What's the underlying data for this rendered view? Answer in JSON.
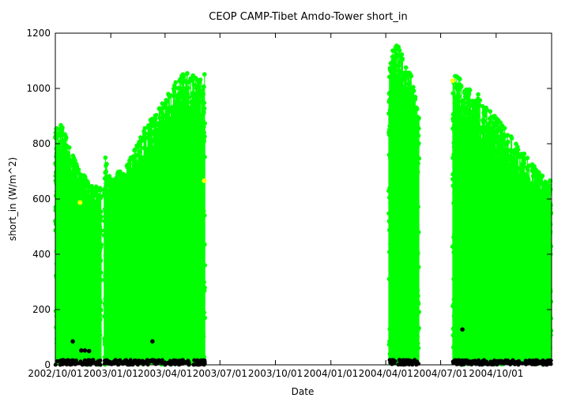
{
  "chart_data": {
    "type": "scatter",
    "title": "CEOP CAMP-Tibet Amdo-Tower  short_in",
    "xlabel": "Date",
    "ylabel": "short_in (W/m^2)",
    "xlim": [
      "2002-10-01",
      "2005-01-01"
    ],
    "ylim": [
      0,
      1200
    ],
    "x_ticks": [
      "2002/10/01",
      "2003/01/01",
      "2003/04/01",
      "2003/07/01",
      "2003/10/01",
      "2004/01/01",
      "2004/04/01",
      "2004/07/01",
      "2004/10/01"
    ],
    "y_ticks": [
      0,
      200,
      400,
      600,
      800,
      1000,
      1200
    ],
    "colors": {
      "good": "#00ff00",
      "flagged": "#ffff00",
      "bad": "#000000"
    },
    "observation_periods": [
      {
        "start": "2002-10-01",
        "end": "2002-12-16",
        "max_values": [
          900,
          880,
          870,
          850,
          820,
          790,
          760,
          740,
          720,
          700,
          690,
          680,
          660,
          650,
          650,
          640,
          640
        ]
      },
      {
        "start": "2002-12-21",
        "end": "2003-06-06",
        "max_values": [
          800,
          700,
          680,
          690,
          700,
          710,
          720,
          750,
          780,
          800,
          830,
          860,
          880,
          900,
          920,
          940,
          960,
          980,
          1000,
          1020,
          1040,
          1050,
          1060,
          1055,
          1050,
          1045,
          1040,
          1060
        ]
      },
      {
        "start": "2004-04-06",
        "end": "2004-05-26",
        "max_values": [
          1050,
          1120,
          1150,
          1160,
          1160,
          1140,
          1120,
          1100,
          1080,
          1060,
          1040,
          1000,
          950,
          900
        ]
      },
      {
        "start": "2004-07-21",
        "end": "2004-12-31",
        "max_values": [
          1075,
          1050,
          1030,
          1020,
          1000,
          990,
          980,
          960,
          940,
          920,
          900,
          880,
          860,
          840,
          820,
          800,
          780,
          760,
          740,
          720,
          700,
          690,
          680,
          680
        ]
      }
    ],
    "flagged_points": [
      {
        "x": "2002-11-11",
        "y": 587
      },
      {
        "x": "2003-06-05",
        "y": 666
      },
      {
        "x": "2004-07-21",
        "y": 1028
      }
    ],
    "bad_points": [
      {
        "x": "2002-10-30",
        "y": 85
      },
      {
        "x": "2002-11-13",
        "y": 52
      },
      {
        "x": "2002-11-19",
        "y": 52
      },
      {
        "x": "2002-11-26",
        "y": 50
      },
      {
        "x": "2003-03-11",
        "y": 85
      },
      {
        "x": "2004-08-06",
        "y": 128
      }
    ]
  }
}
